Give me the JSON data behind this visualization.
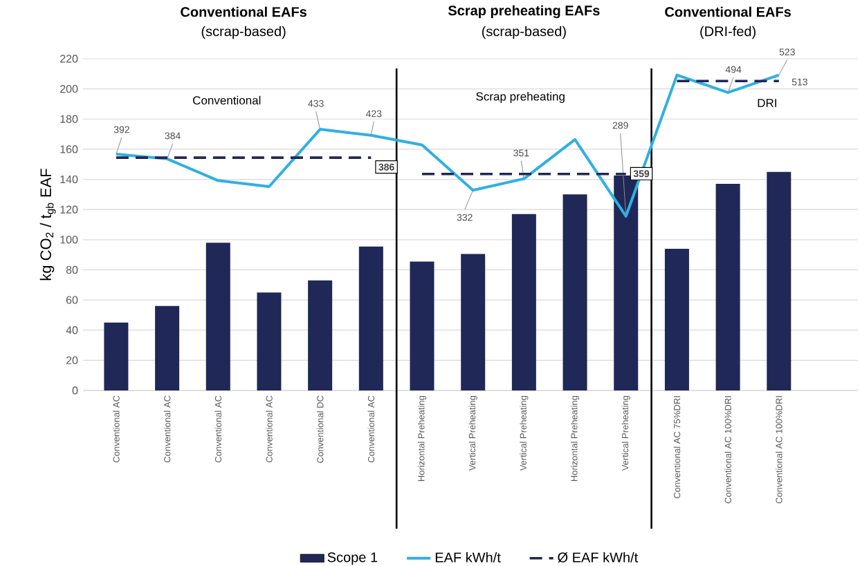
{
  "chart_data": {
    "type": "bar",
    "ylabel": "kg CO$_{2}$ / t$_{gb}$ EAF",
    "categories": [
      "Conventional AC",
      "Conventional AC",
      "Conventional AC",
      "Conventional AC",
      "Conventional DC",
      "Conventional AC",
      "Horizontal Preheating",
      "Vertical Preheating",
      "Vertical Preheating",
      "Horizontal Preheating",
      "Vertical Preheating",
      "Conventional AC 75%DRI",
      "Conventional AC 100%DRI",
      "Conventional AC 100%DRI"
    ],
    "series": [
      {
        "name": "Scope 1",
        "color": "#1f2857",
        "values": [
          45,
          56,
          98,
          65,
          73,
          95.5,
          85.5,
          90.5,
          117,
          130,
          142.5,
          94,
          137,
          145
        ]
      },
      {
        "name": "EAF kWh/t",
        "type": "line",
        "axis": "y2",
        "color": "#2eb0e4",
        "values": [
          392,
          384,
          348,
          338,
          433,
          423,
          407,
          332,
          351,
          416,
          289,
          523,
          494,
          523
        ],
        "value_labels": [
          "392",
          "384",
          null,
          null,
          "433",
          "423",
          null,
          "332",
          "351",
          null,
          "289",
          null,
          "494",
          "523"
        ]
      },
      {
        "name": "Ø EAF kWh/t",
        "type": "line",
        "axis": "y2",
        "color": "#1f2857",
        "line_style": "dashed",
        "values": [
          386,
          386,
          386,
          386,
          386,
          386,
          null,
          null,
          null,
          null,
          null,
          null,
          null,
          null
        ],
        "value_labels": [
          null,
          null,
          null,
          null,
          null,
          "386",
          null,
          null,
          null,
          null,
          null,
          null,
          null,
          null
        ]
      },
      {
        "type": "line",
        "axis": "y2",
        "color": "#1f2857",
        "line_style": "dashed",
        "values": [
          null,
          null,
          null,
          null,
          null,
          null,
          359,
          359,
          359,
          359,
          359,
          null,
          null,
          null
        ],
        "value_labels": [
          null,
          null,
          null,
          null,
          null,
          null,
          null,
          null,
          null,
          null,
          "359",
          null,
          null,
          null
        ]
      },
      {
        "type": "line",
        "axis": "y2",
        "color": "#1f2857",
        "line_style": "dashed",
        "values": [
          null,
          null,
          null,
          null,
          null,
          null,
          null,
          null,
          null,
          null,
          null,
          513,
          513,
          513
        ],
        "value_labels": [
          null,
          null,
          null,
          null,
          null,
          null,
          null,
          null,
          null,
          null,
          null,
          null,
          null,
          "513"
        ]
      }
    ],
    "ylim": [
      0,
      220
    ],
    "yticks": [
      0,
      20,
      40,
      60,
      80,
      100,
      120,
      140,
      160,
      180,
      200,
      220
    ],
    "y2lim": [
      0,
      550
    ],
    "grid": "y",
    "legend": "bottom",
    "marker": "none",
    "annotations": [
      "Conventional EAFs",
      "(scrap-based)",
      "Scrap preheating EAFs",
      "(scrap-based)",
      "Conventional EAFs",
      "(DRI-fed)",
      "Conventional",
      "Scrap preheating",
      "DRI"
    ]
  }
}
